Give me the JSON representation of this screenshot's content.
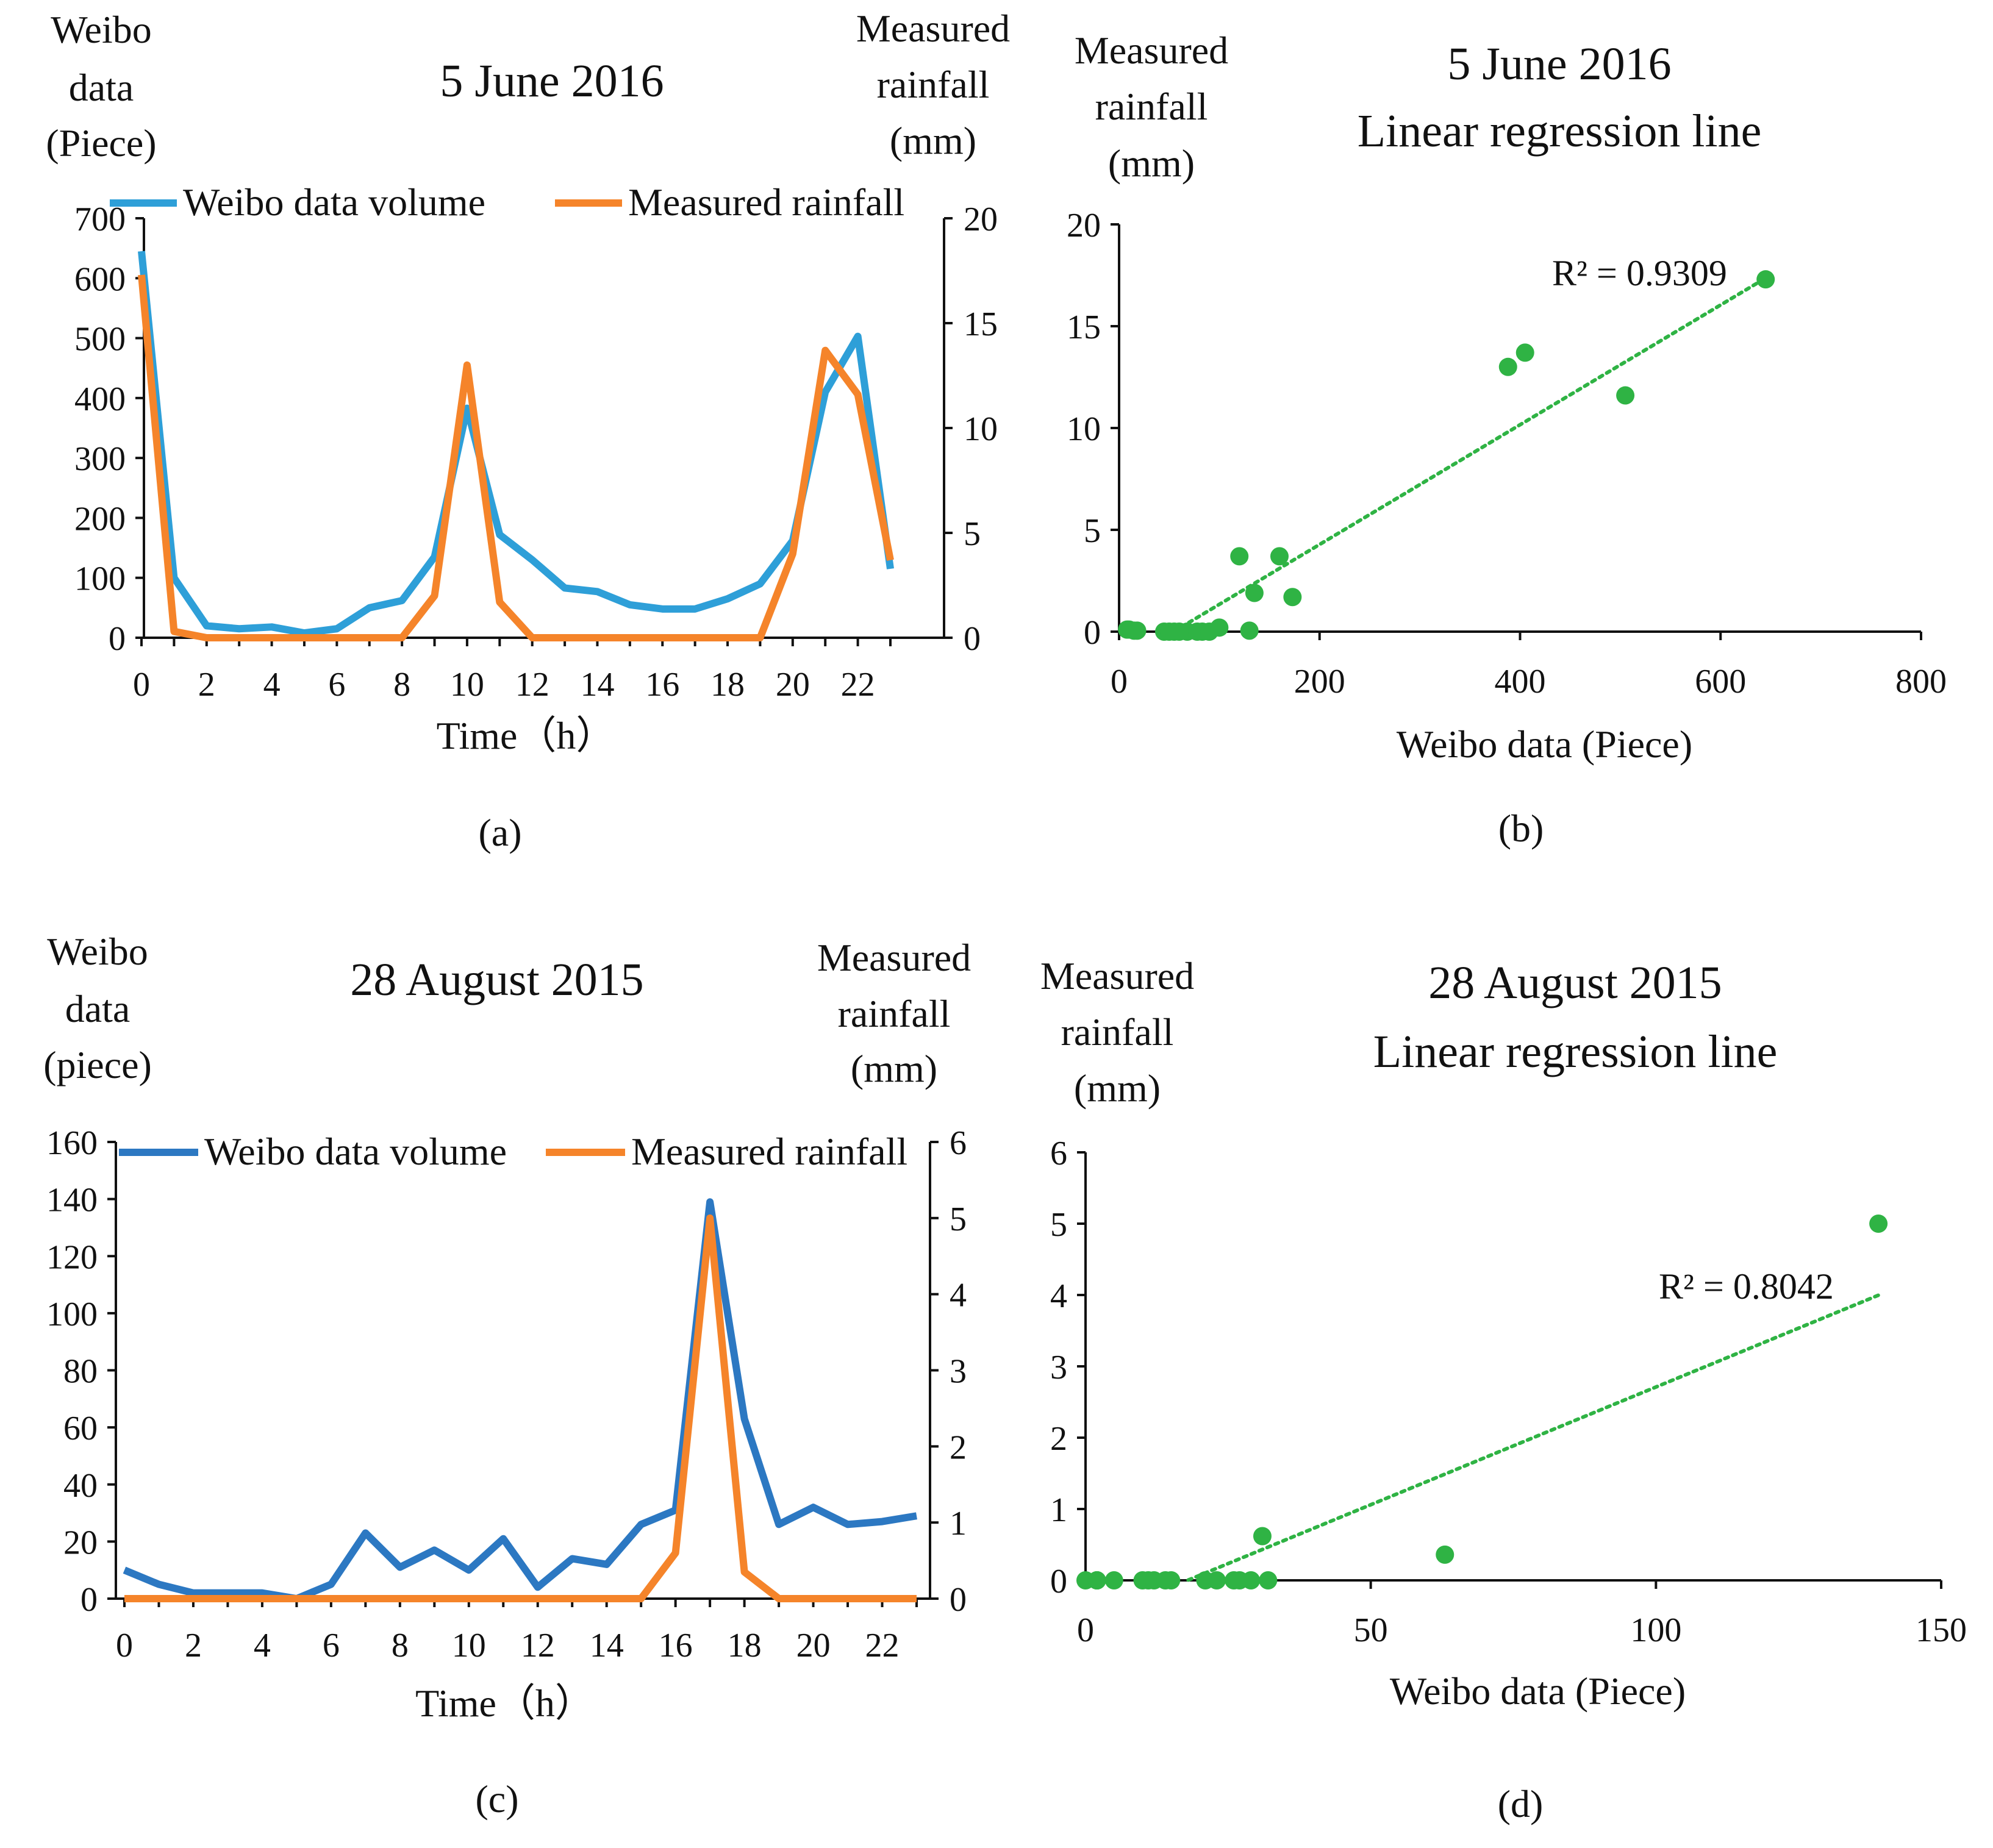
{
  "colors": {
    "weibo_a": "#2e9fd8",
    "weibo_c": "#2c78c2",
    "rainfall": "#f5842a",
    "scatter": "#2fb344",
    "axis": "#111111"
  },
  "chart_data": [
    {
      "id": "a",
      "type": "line",
      "panel_label": "(a)",
      "title": "5 June 2016",
      "left_axis_label": [
        "Weibo",
        "data",
        "(Piece)"
      ],
      "right_axis_label": [
        "Measured",
        "rainfall",
        "(mm)"
      ],
      "xlabel": "Time（h）",
      "x": [
        0,
        1,
        2,
        3,
        4,
        5,
        6,
        7,
        8,
        9,
        10,
        11,
        12,
        13,
        14,
        15,
        16,
        17,
        18,
        19,
        20,
        21,
        22,
        23
      ],
      "xticks": [
        "0",
        "2",
        "4",
        "6",
        "8",
        "10",
        "12",
        "14",
        "16",
        "18",
        "20",
        "22"
      ],
      "ylim_left": [
        0,
        700
      ],
      "yticks_left": [
        "0",
        "100",
        "200",
        "300",
        "400",
        "500",
        "600",
        "700"
      ],
      "ylim_right": [
        0,
        20
      ],
      "yticks_right": [
        "0",
        "5",
        "10",
        "15",
        "20"
      ],
      "series": [
        {
          "name": "Weibo data volume",
          "axis": "left",
          "values": [
            645,
            100,
            20,
            15,
            18,
            8,
            15,
            50,
            62,
            135,
            383,
            172,
            130,
            83,
            77,
            55,
            48,
            48,
            65,
            90,
            162,
            410,
            503,
            115
          ]
        },
        {
          "name": "Measured rainfall",
          "axis": "right",
          "values": [
            17.3,
            0.3,
            0,
            0,
            0,
            0,
            0,
            0,
            0,
            2,
            13,
            1.7,
            0,
            0,
            0,
            0,
            0,
            0,
            0,
            0,
            4,
            13.7,
            11.6,
            3.7
          ]
        }
      ]
    },
    {
      "id": "b",
      "type": "scatter",
      "panel_label": "(b)",
      "title": [
        "5 June 2016",
        "Linear regression line"
      ],
      "ylabel": [
        "Measured",
        "rainfall",
        "(mm)"
      ],
      "xlabel": "Weibo data (Piece)",
      "xlim": [
        0,
        800
      ],
      "xticks": [
        "0",
        "200",
        "400",
        "600",
        "800"
      ],
      "ylim": [
        0,
        20
      ],
      "yticks": [
        "0",
        "5",
        "10",
        "15",
        "20"
      ],
      "r2_label": "R² = 0.9309",
      "trendline": {
        "x0": 55,
        "x1": 645,
        "slope": 0.0294,
        "intercept": -1.6
      },
      "points": [
        [
          8,
          0.1
        ],
        [
          10,
          0.1
        ],
        [
          15,
          0.05
        ],
        [
          18,
          0.05
        ],
        [
          45,
          0
        ],
        [
          50,
          0
        ],
        [
          55,
          0
        ],
        [
          60,
          0
        ],
        [
          68,
          0
        ],
        [
          78,
          0
        ],
        [
          83,
          0
        ],
        [
          90,
          0
        ],
        [
          100,
          0.2
        ],
        [
          130,
          0.05
        ],
        [
          120,
          3.7
        ],
        [
          160,
          3.7
        ],
        [
          135,
          1.9
        ],
        [
          173,
          1.7
        ],
        [
          388,
          13
        ],
        [
          405,
          13.7
        ],
        [
          505,
          11.6
        ],
        [
          645,
          17.3
        ]
      ]
    },
    {
      "id": "c",
      "type": "line",
      "panel_label": "(c)",
      "title": "28 August 2015",
      "left_axis_label": [
        "Weibo",
        "data",
        "(piece)"
      ],
      "right_axis_label": [
        "Measured",
        "rainfall",
        "(mm)"
      ],
      "xlabel": "Time（h）",
      "x": [
        0,
        1,
        2,
        3,
        4,
        5,
        6,
        7,
        8,
        9,
        10,
        11,
        12,
        13,
        14,
        15,
        16,
        17,
        18,
        19,
        20,
        21,
        22,
        23
      ],
      "xticks": [
        "0",
        "2",
        "4",
        "6",
        "8",
        "10",
        "12",
        "14",
        "16",
        "18",
        "20",
        "22"
      ],
      "ylim_left": [
        0,
        160
      ],
      "yticks_left": [
        "0",
        "20",
        "40",
        "60",
        "80",
        "100",
        "120",
        "140",
        "160"
      ],
      "ylim_right": [
        0,
        6
      ],
      "yticks_right": [
        "0",
        "1",
        "2",
        "3",
        "4",
        "5",
        "6"
      ],
      "series": [
        {
          "name": "Weibo data volume",
          "axis": "left",
          "values": [
            10,
            5,
            2,
            2,
            2,
            0,
            5,
            23,
            11,
            17,
            10,
            21,
            4,
            14,
            12,
            26,
            31,
            139,
            63,
            26,
            32,
            26,
            27,
            29
          ]
        },
        {
          "name": "Measured rainfall",
          "axis": "right",
          "values": [
            0,
            0,
            0,
            0,
            0,
            0,
            0,
            0,
            0,
            0,
            0,
            0,
            0,
            0,
            0,
            0,
            0.6,
            5,
            0.35,
            0,
            0,
            0,
            0,
            0
          ]
        }
      ]
    },
    {
      "id": "d",
      "type": "scatter",
      "panel_label": "(d)",
      "title": [
        "28 August 2015",
        "Linear regression line"
      ],
      "ylabel": [
        "Measured",
        "rainfall",
        "(mm)"
      ],
      "xlabel": "Weibo data (Piece)",
      "xlim": [
        0,
        150
      ],
      "xticks": [
        "0",
        "50",
        "100",
        "150"
      ],
      "ylim": [
        0,
        6
      ],
      "yticks": [
        "0",
        "1",
        "2",
        "3",
        "4",
        "5",
        "6"
      ],
      "r2_label": "R² = 0.8042",
      "trendline": {
        "x0": 18,
        "x1": 139,
        "slope": 0.033,
        "intercept": -0.59
      },
      "points": [
        [
          0,
          0
        ],
        [
          2,
          0
        ],
        [
          2,
          0
        ],
        [
          2,
          0
        ],
        [
          5,
          0
        ],
        [
          10,
          0
        ],
        [
          11,
          0
        ],
        [
          12,
          0
        ],
        [
          14,
          0
        ],
        [
          15,
          0
        ],
        [
          21,
          0
        ],
        [
          23,
          0
        ],
        [
          26,
          0
        ],
        [
          27,
          0
        ],
        [
          29,
          0
        ],
        [
          32,
          0
        ],
        [
          31,
          0.62
        ],
        [
          63,
          0.36
        ],
        [
          139,
          5
        ]
      ]
    }
  ]
}
